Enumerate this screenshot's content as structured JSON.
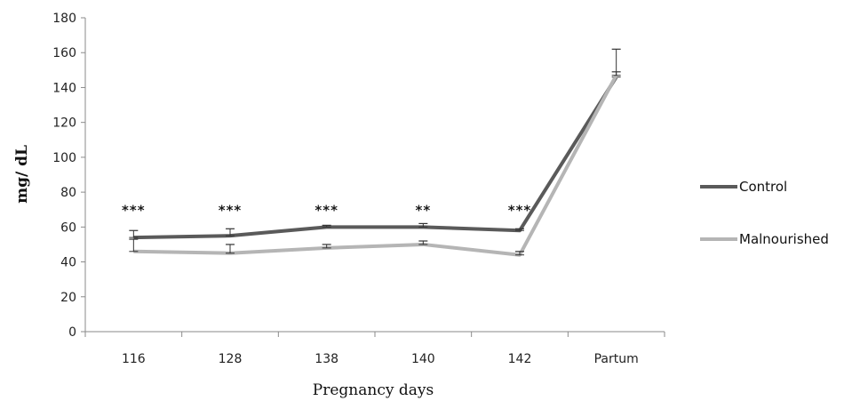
{
  "chart_data": {
    "type": "line",
    "categories": [
      "116",
      "128",
      "138",
      "140",
      "142",
      "Partum"
    ],
    "series": [
      {
        "name": "Control",
        "color": "#5a5a5a",
        "values": [
          54,
          55,
          60,
          60,
          58,
          146
        ],
        "error": [
          4,
          4,
          1,
          2,
          1,
          16
        ]
      },
      {
        "name": "Malnourished",
        "color": "#b5b5b5",
        "values": [
          46,
          45,
          48,
          50,
          44,
          147
        ],
        "error": [
          7,
          5,
          2,
          2,
          2,
          2
        ]
      }
    ],
    "significance": [
      "***",
      "***",
      "***",
      "**",
      "***",
      ""
    ],
    "xlabel": "Pregnancy days",
    "ylabel": "mg/ dL",
    "ylim": [
      0,
      180
    ],
    "yticks": [
      0,
      20,
      40,
      60,
      80,
      100,
      120,
      140,
      160,
      180
    ],
    "legend_position": "right",
    "grid": false
  }
}
